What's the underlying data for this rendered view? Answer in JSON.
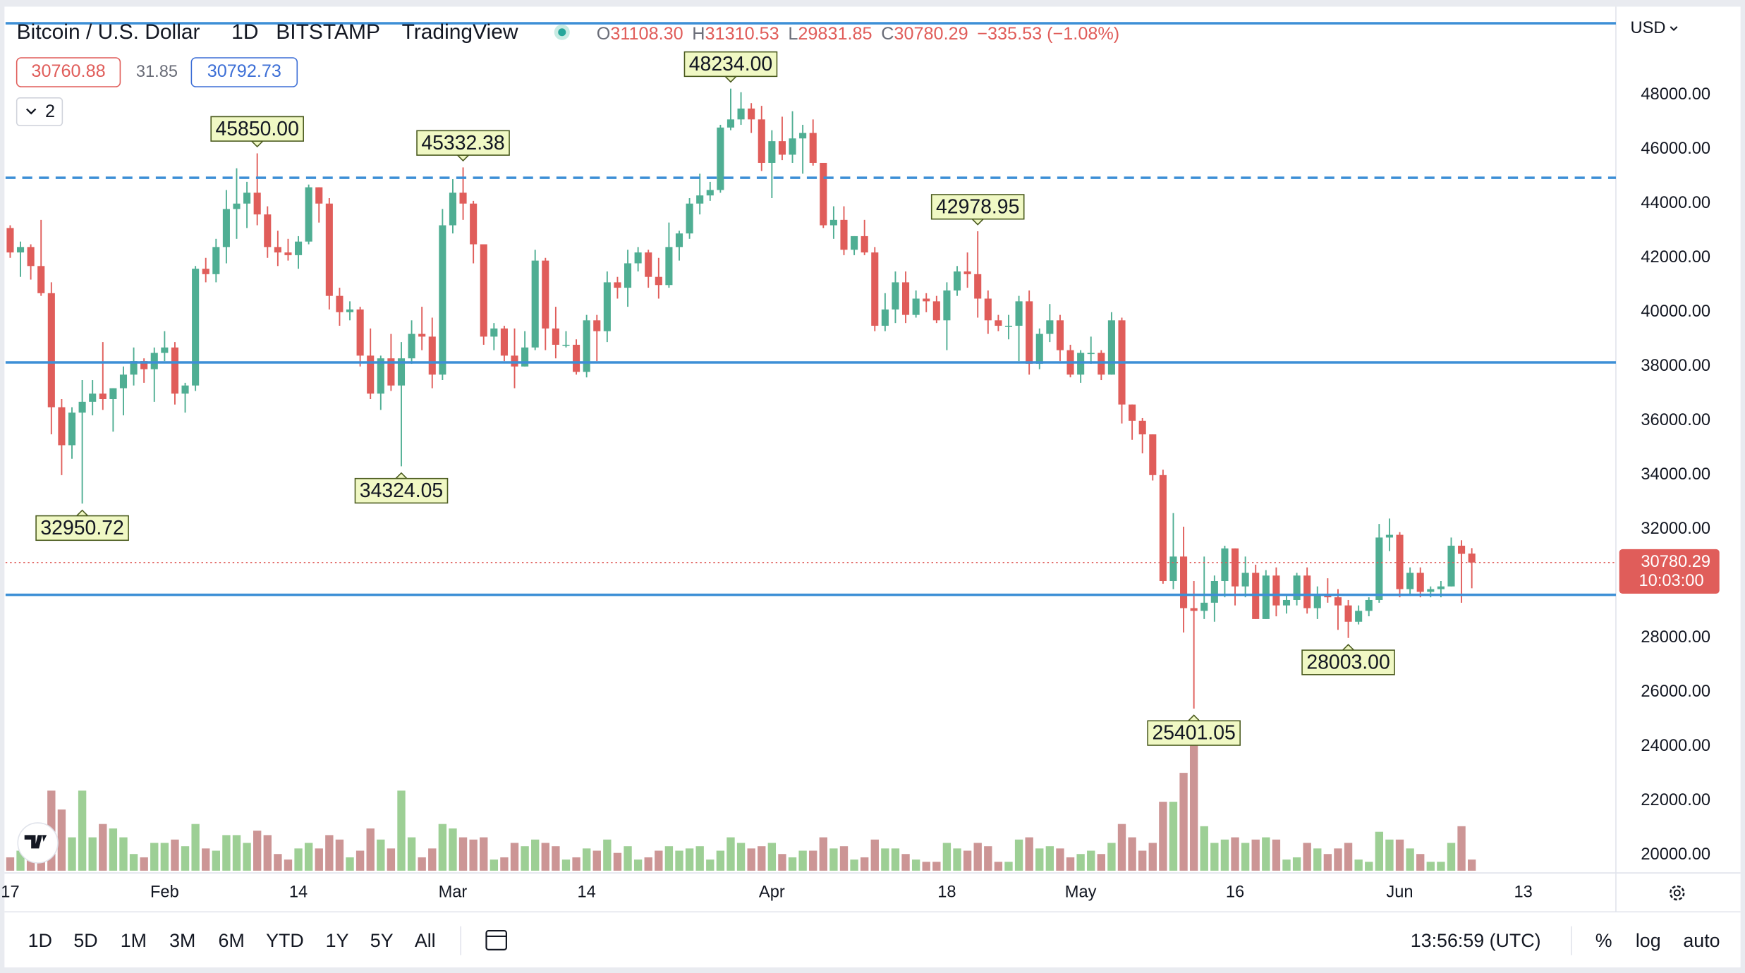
{
  "chart_data": {
    "type": "candlestick",
    "header": {
      "title": "Bitcoin / U.S. Dollar",
      "interval": "1D",
      "exchange": "BITSTAMP",
      "source": "TradingView",
      "ohlc": [
        {
          "key": "O",
          "value": "31108.30"
        },
        {
          "key": "H",
          "value": "31310.53"
        },
        {
          "key": "L",
          "value": "29831.85"
        },
        {
          "key": "C",
          "value": "30780.29"
        }
      ],
      "change": "−335.53 (−1.08%)",
      "bid": "30760.88",
      "spread": "31.85",
      "ask": "30792.73",
      "indicators_count": "2"
    },
    "currency": "USD",
    "last_price": "30780.29",
    "countdown": "10:03:00",
    "open": [
      43100,
      42200,
      42400,
      41700,
      40700,
      36500,
      35100,
      36300,
      36700,
      37000,
      36800,
      37200,
      37700,
      38200,
      37900,
      38500,
      38700,
      37000,
      37300,
      41600,
      41400,
      42400,
      43800,
      44000,
      44400,
      43600,
      42400,
      42200,
      42100,
      42600,
      44600,
      44000,
      40600,
      40000,
      40100,
      38400,
      37000,
      38300,
      37300,
      38300,
      39200,
      39100,
      37700,
      43200,
      44400,
      44000,
      42500,
      39100,
      39400,
      38400,
      38000,
      38700,
      41900,
      39400,
      38800,
      38800,
      37800,
      39700,
      39300,
      41100,
      40900,
      41800,
      42200,
      41300,
      41000,
      42400,
      42900,
      44000,
      44300,
      44500,
      46800,
      47100,
      47500,
      47100,
      45500,
      46300,
      45800,
      46400,
      46600,
      45500,
      43200,
      43400,
      42300,
      42800,
      42200,
      39500,
      40100,
      41100,
      39900,
      40500,
      40400,
      39700,
      40800,
      41500,
      41400,
      40500,
      39700,
      39500,
      39500,
      40400,
      38100,
      39200,
      39700,
      38600,
      37700,
      38500,
      38500,
      37700,
      39700,
      36600,
      36000,
      35500,
      34000,
      30100,
      31000,
      29100,
      29000,
      29300,
      30100,
      31300,
      29900,
      30400,
      28700,
      30300,
      29200,
      29400,
      30300,
      29100,
      29600,
      29500,
      29200,
      28600,
      29000,
      29400,
      31700,
      31800,
      29800,
      30400,
      29700,
      29800,
      29900,
      31400,
      31108.3
    ],
    "high": [
      43200,
      42600,
      42500,
      43400,
      41100,
      36800,
      36500,
      37500,
      37500,
      38900,
      37200,
      38000,
      38700,
      38300,
      38700,
      39300,
      38900,
      37400,
      41700,
      42000,
      42700,
      44500,
      45300,
      44800,
      45850,
      43900,
      43000,
      42700,
      42800,
      44700,
      44600,
      44200,
      40900,
      40400,
      40200,
      39400,
      38400,
      39200,
      38900,
      39700,
      40200,
      39800,
      43800,
      44900,
      45332.38,
      44100,
      42500,
      39600,
      39500,
      39400,
      39300,
      42300,
      42000,
      40200,
      39300,
      39000,
      39900,
      39900,
      41500,
      41300,
      42300,
      42400,
      42300,
      42000,
      43300,
      43000,
      44200,
      45100,
      44800,
      46900,
      48234,
      48100,
      47700,
      47600,
      46700,
      47200,
      47400,
      46900,
      47100,
      45500,
      43900,
      43900,
      42800,
      43400,
      42400,
      40700,
      41500,
      41500,
      40800,
      40700,
      40600,
      41100,
      41700,
      42200,
      42978.95,
      40800,
      39900,
      39900,
      40600,
      40800,
      39400,
      40300,
      39900,
      38800,
      38600,
      39100,
      38600,
      40000,
      39800,
      36600,
      36100,
      35500,
      34200,
      32600,
      32100,
      30100,
      31000,
      30300,
      31400,
      31300,
      31000,
      30700,
      30500,
      30600,
      29600,
      30400,
      30600,
      29900,
      30200,
      29800,
      29400,
      29200,
      29500,
      32200,
      32400,
      31900,
      30600,
      30600,
      29900,
      30100,
      31700,
      31600,
      31310.53
    ],
    "low": [
      42000,
      41300,
      41200,
      40600,
      35500,
      34000,
      34600,
      32950.72,
      36200,
      36400,
      35600,
      36200,
      37300,
      37400,
      36700,
      38200,
      36600,
      36300,
      37100,
      41100,
      41100,
      41800,
      42700,
      43100,
      43200,
      42000,
      41700,
      41900,
      41600,
      42500,
      43300,
      40100,
      39500,
      39700,
      38000,
      36800,
      36400,
      37100,
      34324.05,
      38100,
      38600,
      37200,
      37500,
      42900,
      43400,
      41800,
      38800,
      38600,
      38200,
      37200,
      38000,
      38600,
      38600,
      38300,
      38700,
      37700,
      37600,
      38200,
      38900,
      40500,
      40200,
      41500,
      40900,
      40500,
      40900,
      41900,
      42700,
      43600,
      44100,
      44400,
      46700,
      46900,
      46600,
      45200,
      44200,
      45600,
      45500,
      45100,
      45400,
      43100,
      42700,
      42100,
      42100,
      42100,
      39300,
      39300,
      39600,
      39600,
      39800,
      40000,
      39600,
      38600,
      40600,
      40900,
      39800,
      39200,
      39300,
      39000,
      38200,
      37700,
      37900,
      38900,
      38200,
      37600,
      37400,
      38100,
      37500,
      37700,
      35900,
      35300,
      34800,
      33800,
      30000,
      29800,
      28200,
      25401.05,
      28700,
      28600,
      29500,
      29200,
      29500,
      28700,
      28700,
      28800,
      28900,
      29200,
      28900,
      28700,
      29300,
      28300,
      28003,
      28500,
      28800,
      29300,
      31200,
      29500,
      29600,
      29500,
      29500,
      29500,
      29900,
      29300,
      29831.85
    ],
    "close": [
      42200,
      42400,
      41700,
      40700,
      36500,
      35100,
      36300,
      36700,
      37000,
      36800,
      37200,
      37700,
      38200,
      37900,
      38500,
      38700,
      37000,
      37300,
      41600,
      41400,
      42400,
      43800,
      44000,
      44400,
      43600,
      42400,
      42200,
      42100,
      42600,
      44600,
      44000,
      40600,
      40000,
      40100,
      38400,
      37000,
      38300,
      37300,
      38300,
      39200,
      39100,
      37700,
      43200,
      44400,
      44000,
      42500,
      39100,
      39400,
      38400,
      38000,
      38700,
      41900,
      39400,
      38800,
      38800,
      37800,
      39700,
      39300,
      41100,
      40900,
      41800,
      42200,
      41300,
      41000,
      42400,
      42900,
      44000,
      44300,
      44500,
      46800,
      47100,
      47500,
      47100,
      45500,
      46300,
      45800,
      46400,
      46600,
      45500,
      43200,
      43400,
      42300,
      42800,
      42200,
      39500,
      40100,
      41100,
      39900,
      40500,
      40400,
      39700,
      40800,
      41500,
      41400,
      40500,
      39700,
      39500,
      39500,
      40400,
      38100,
      39200,
      39700,
      38600,
      37700,
      38500,
      38500,
      37700,
      39700,
      36600,
      36000,
      35500,
      34000,
      30100,
      31000,
      29100,
      29000,
      29300,
      30100,
      31300,
      29900,
      30400,
      28700,
      30300,
      29200,
      29400,
      30300,
      29100,
      29600,
      29500,
      29200,
      28600,
      29000,
      29400,
      31700,
      31800,
      29800,
      30400,
      29700,
      29800,
      29900,
      31400,
      31100,
      30780.29
    ],
    "volume": [
      12,
      18,
      20,
      36,
      72,
      55,
      30,
      72,
      30,
      42,
      38,
      30,
      15,
      12,
      25,
      25,
      28,
      22,
      42,
      20,
      18,
      32,
      32,
      25,
      36,
      32,
      15,
      10,
      20,
      25,
      20,
      32,
      28,
      12,
      18,
      38,
      28,
      20,
      72,
      30,
      12,
      20,
      42,
      38,
      30,
      28,
      30,
      10,
      12,
      25,
      22,
      28,
      25,
      22,
      10,
      12,
      20,
      18,
      28,
      16,
      22,
      10,
      12,
      18,
      22,
      18,
      20,
      22,
      10,
      18,
      30,
      25,
      20,
      22,
      25,
      15,
      12,
      18,
      18,
      30,
      20,
      22,
      10,
      12,
      28,
      20,
      20,
      15,
      10,
      8,
      8,
      25,
      20,
      18,
      25,
      22,
      8,
      8,
      28,
      30,
      20,
      22,
      20,
      12,
      15,
      18,
      15,
      25,
      42,
      30,
      18,
      25,
      62,
      62,
      88,
      118,
      40,
      25,
      28,
      30,
      25,
      28,
      30,
      28,
      10,
      12,
      25,
      20,
      15,
      20,
      25,
      10,
      8,
      35,
      28,
      28,
      20,
      15,
      8,
      8,
      25,
      40,
      10
    ],
    "up_color": "#4fae93",
    "down_color": "#e05d5a",
    "volume_up_color": "#9dcf95",
    "volume_down_color": "#cc9595",
    "xlim": [
      -0.45,
      156
    ],
    "ylim": [
      19430,
      51170
    ],
    "xticks": [
      {
        "value": 0,
        "label": "17"
      },
      {
        "value": 15,
        "label": "Feb"
      },
      {
        "value": 28,
        "label": "14"
      },
      {
        "value": 43,
        "label": "Mar"
      },
      {
        "value": 56,
        "label": "14"
      },
      {
        "value": 74,
        "label": "Apr"
      },
      {
        "value": 91,
        "label": "18"
      },
      {
        "value": 104,
        "label": "May"
      },
      {
        "value": 119,
        "label": "16"
      },
      {
        "value": 135,
        "label": "Jun"
      },
      {
        "value": 147,
        "label": "13"
      }
    ],
    "yticks": [
      {
        "value": 20000,
        "label": "20000.00"
      },
      {
        "value": 22000,
        "label": "22000.00"
      },
      {
        "value": 24000,
        "label": "24000.00"
      },
      {
        "value": 26000,
        "label": "26000.00"
      },
      {
        "value": 28000,
        "label": "28000.00"
      },
      {
        "value": 30000,
        "label": "30000.00"
      },
      {
        "value": 32000,
        "label": "32000.00"
      },
      {
        "value": 34000,
        "label": "34000.00"
      },
      {
        "value": 36000,
        "label": "36000.00"
      },
      {
        "value": 38000,
        "label": "38000.00"
      },
      {
        "value": 40000,
        "label": "40000.00"
      },
      {
        "value": 42000,
        "label": "42000.00"
      },
      {
        "value": 44000,
        "label": "44000.00"
      },
      {
        "value": 46000,
        "label": "46000.00"
      },
      {
        "value": 48000,
        "label": "48000.00"
      }
    ],
    "hlines": [
      {
        "value": 50640,
        "dash": false
      },
      {
        "value": 44950,
        "dash": true
      },
      {
        "value": 38150,
        "dash": false
      },
      {
        "value": 29590,
        "dash": false
      }
    ],
    "hline_color": "#3d8fd6",
    "annotations": [
      {
        "value": 45850,
        "label": "45850.00"
      },
      {
        "value": 45332.38,
        "label": "45332.38"
      },
      {
        "value": 48234,
        "label": "48234.00"
      },
      {
        "value": 42978.95,
        "label": "42978.95"
      },
      {
        "value": 32950.72,
        "label": "32950.72"
      },
      {
        "value": 34324.05,
        "label": "34324.05"
      },
      {
        "value": 25401.05,
        "label": "25401.05"
      },
      {
        "value": 28003,
        "label": "28003.00"
      }
    ],
    "toolbar": {
      "ranges": [
        "1D",
        "5D",
        "1M",
        "3M",
        "6M",
        "YTD",
        "1Y",
        "5Y",
        "All"
      ],
      "time": "13:56:59 (UTC)",
      "options": [
        "%",
        "log",
        "auto"
      ]
    }
  }
}
